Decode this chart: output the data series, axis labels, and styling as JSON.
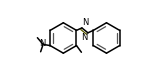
{
  "bg_color": "#ffffff",
  "line_color": "#000000",
  "double_bond_color": "#555555",
  "azo_color": "#5a5a00",
  "fig_width": 1.6,
  "fig_height": 0.73,
  "dpi": 100,
  "lw": 1.1,
  "dlw": 0.9,
  "r": 0.155,
  "lcx": 0.38,
  "lcy": 0.5,
  "rcx": 0.82,
  "rcy": 0.5,
  "font_size": 6.0,
  "xlim": [
    0.02,
    1.08
  ],
  "ylim": [
    0.15,
    0.88
  ]
}
